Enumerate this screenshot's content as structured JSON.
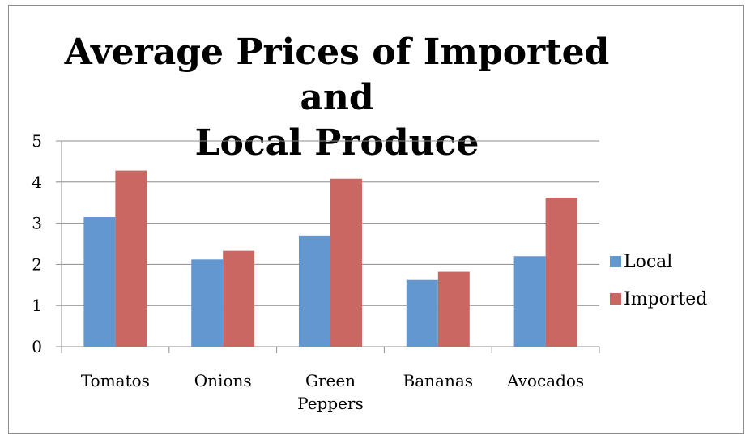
{
  "chart_data": {
    "type": "bar",
    "title_lines": [
      "Average Prices of Imported and",
      "Local Produce"
    ],
    "categories": [
      [
        "Tomatos"
      ],
      [
        "Onions"
      ],
      [
        "Green",
        "Peppers"
      ],
      [
        "Bananas"
      ],
      [
        "Avocados"
      ]
    ],
    "series": [
      {
        "name": "Local",
        "color": "#6297d0",
        "values": [
          3.15,
          2.12,
          2.7,
          1.62,
          2.2
        ]
      },
      {
        "name": "Imported",
        "color": "#cb6762",
        "values": [
          4.28,
          2.33,
          4.08,
          1.82,
          3.62
        ]
      }
    ],
    "ylim": [
      0,
      5
    ],
    "yticks": [
      "0",
      "1",
      "2",
      "3",
      "4",
      "5"
    ],
    "grid": true,
    "legend": "right"
  }
}
